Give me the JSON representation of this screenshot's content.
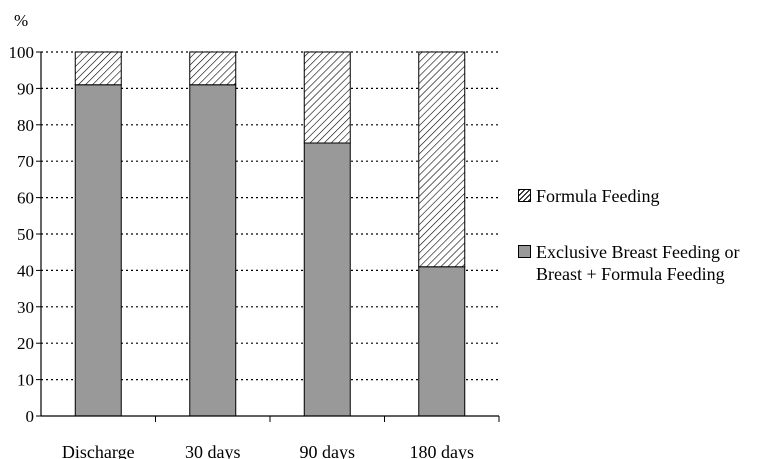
{
  "chart_data": {
    "type": "bar",
    "stacked": true,
    "title": "",
    "ylabel": "%",
    "xlabel": "",
    "categories": [
      "Discharge",
      "30 days",
      "90 days",
      "180 days"
    ],
    "series": [
      {
        "name": "Exclusive Breast Feeding or\nBreast + Formula Feeding",
        "values": [
          91,
          91,
          75,
          41
        ],
        "color": "#999999",
        "pattern": "solid"
      },
      {
        "name": "Formula Feeding",
        "values": [
          9,
          9,
          25,
          59
        ],
        "color": "#ffffff",
        "pattern": "hatched"
      }
    ],
    "ylim": [
      0,
      100
    ],
    "yticks": [
      "0",
      "10",
      "20",
      "30",
      "40",
      "50",
      "60",
      "70",
      "80",
      "90",
      "100"
    ],
    "grid": "horizontal-dotted",
    "legend_position": "right"
  }
}
